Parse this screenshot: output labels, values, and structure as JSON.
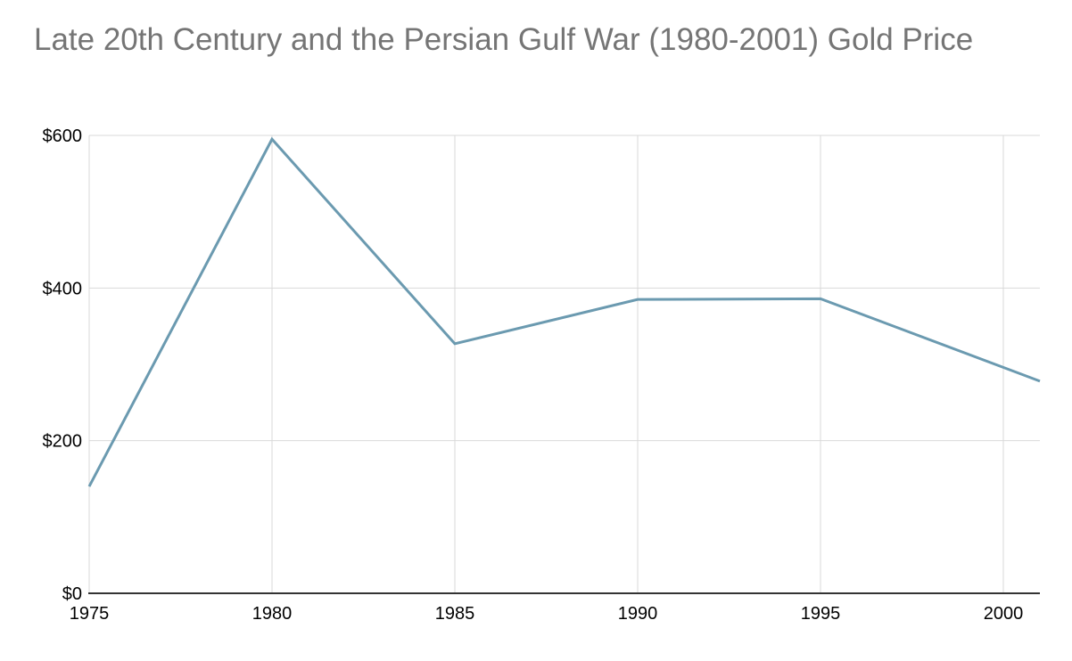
{
  "title": "Late 20th Century and the Persian Gulf War (1980-2001) Gold Price",
  "chart_data": {
    "type": "line",
    "title": "Late 20th Century and the Persian Gulf War (1980-2001) Gold Price",
    "series_name": "Gold Price",
    "x": [
      1975,
      1980,
      1985,
      1990,
      1995,
      2001
    ],
    "values": [
      140,
      595,
      327,
      385,
      386,
      278
    ],
    "x_ticks": [
      1975,
      1980,
      1985,
      1990,
      1995,
      2000
    ],
    "x_tick_labels": [
      "1975",
      "1980",
      "1985",
      "1990",
      "1995",
      "2000"
    ],
    "y_ticks": [
      0,
      200,
      400,
      600
    ],
    "y_tick_labels": [
      "$0",
      "$200",
      "$400",
      "$600"
    ],
    "xlim": [
      1975,
      2001
    ],
    "ylim": [
      0,
      600
    ],
    "grid": true,
    "legend": "none",
    "line_color": "#6b9ab0",
    "grid_color": "#d9d9d9",
    "axis_color": "#333333",
    "title_color": "#757575",
    "tick_label_color": "#000000"
  }
}
